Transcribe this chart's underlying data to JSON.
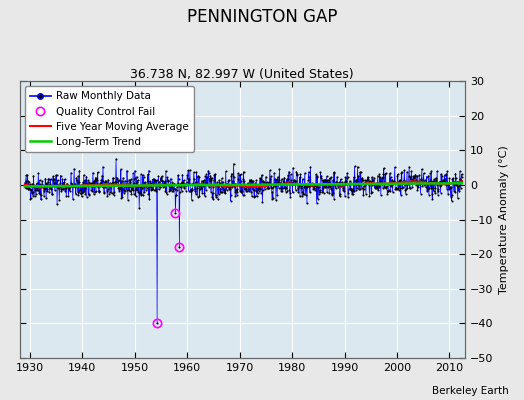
{
  "title": "PENNINGTON GAP",
  "subtitle": "36.738 N, 82.997 W (United States)",
  "credit": "Berkeley Earth",
  "ylabel": "Temperature Anomaly (°C)",
  "xlim": [
    1928,
    2013
  ],
  "ylim": [
    -50,
    30
  ],
  "yticks": [
    -50,
    -40,
    -30,
    -20,
    -10,
    0,
    10,
    20,
    30
  ],
  "xticks": [
    1930,
    1940,
    1950,
    1960,
    1970,
    1980,
    1990,
    2000,
    2010
  ],
  "bg_color": "#e8e8e8",
  "plot_bg_color": "#dce8f0",
  "raw_line_color": "#0000ff",
  "raw_marker_color": "#000000",
  "moving_avg_color": "#ff0000",
  "trend_color": "#00cc00",
  "qc_marker_color": "#ff00ff",
  "spike1_year": 1954.25,
  "spike1_value": -40,
  "spike2_year": 1957.75,
  "spike2_value": -8,
  "spike3_year": 1958.5,
  "spike3_value": -18,
  "noise_std": 2.0,
  "seed": 42
}
